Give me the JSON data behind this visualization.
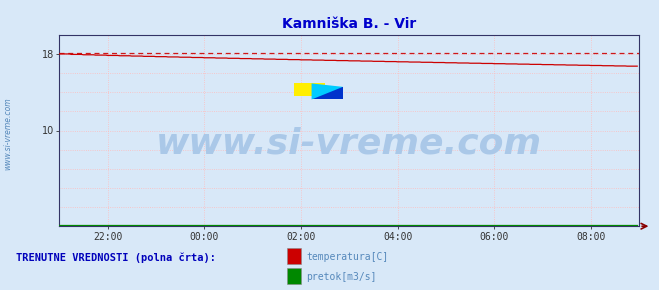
{
  "title": "Kamniška B. - Vir",
  "title_color": "#0000cc",
  "title_fontsize": 10,
  "bg_color": "#d8e8f8",
  "plot_bg_color": "#d8e8f8",
  "xlim": [
    0,
    288
  ],
  "ylim": [
    0,
    20
  ],
  "xtick_labels": [
    "22:00",
    "00:00",
    "02:00",
    "04:00",
    "06:00",
    "08:00"
  ],
  "xtick_positions": [
    24,
    72,
    120,
    168,
    216,
    264
  ],
  "ytick_positions": [
    10,
    18
  ],
  "ytick_labels": [
    "10",
    "18"
  ],
  "temp_start": 18.0,
  "temp_end": 16.7,
  "temp_max_dashed": 18.15,
  "flow_value": 0.15,
  "grid_color": "#ffbbbb",
  "grid_minor_color": "#ffcccc",
  "line_color_temp": "#cc0000",
  "line_color_flow": "#008800",
  "spine_color": "#333366",
  "watermark_color": "#aac8e8",
  "watermark_text": "www.si-vreme.com",
  "watermark_fontsize": 26,
  "side_text": "www.si-vreme.com",
  "side_color": "#5588bb",
  "legend_label1": "temperatura[C]",
  "legend_label2": "pretok[m3/s]",
  "legend_color1": "#cc0000",
  "legend_color2": "#008800",
  "footer_text": "TRENUTNE VREDNOSTI (polna črta):",
  "footer_color": "#0000bb",
  "footer_fontsize": 7.5,
  "logo_yellow": "#ffee00",
  "logo_blue": "#0033cc",
  "logo_cyan": "#00ccff"
}
